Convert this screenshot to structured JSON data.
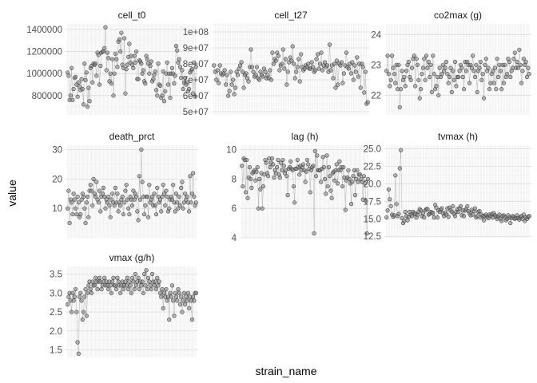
{
  "chart_data": {
    "type": "scatter",
    "layout": "faceted, 3 columns, free y scales",
    "xlabel": "strain_name",
    "ylabel": "value",
    "x_tick_labels": "none (categorical strain names, ~130 strains, unlabeled)",
    "n_points": 130,
    "grid": true,
    "point_color": "#404040",
    "point_fill": "#808080",
    "facets": [
      {
        "name": "cell_t0",
        "ylim": [
          625000,
          1450000
        ],
        "yticks": [
          800000,
          1000000,
          1200000,
          1400000
        ],
        "ytick_labels": [
          "800000",
          "1000000",
          "1200000",
          "1400000"
        ],
        "values": [
          1010000,
          980000,
          760000,
          800000,
          1050000,
          760000,
          860000,
          960000,
          970000,
          900000,
          790000,
          920000,
          880000,
          850000,
          950000,
          860000,
          720000,
          1090000,
          940000,
          1010000,
          700000,
          870000,
          750000,
          1050000,
          1070000,
          920000,
          1090000,
          1080000,
          1090000,
          980000,
          1190000,
          1170000,
          900000,
          1070000,
          1190000,
          1200000,
          1200000,
          1230000,
          1420000,
          1030000,
          1190000,
          1140000,
          930000,
          1000000,
          910000,
          1130000,
          800000,
          1000000,
          1180000,
          1130000,
          1060000,
          1290000,
          1310000,
          1200000,
          1370000,
          1080000,
          1050000,
          1320000,
          820000,
          1040000,
          1080000,
          1150000,
          1270000,
          1100000,
          1160000,
          1080000,
          1050000,
          1160000,
          1100000,
          1200000,
          950000,
          950000,
          1120000,
          1110000,
          1090000,
          1000000,
          1030000,
          930000,
          910000,
          1160000,
          1130000,
          1090000,
          1000000,
          1070000,
          1110000,
          930000,
          950000,
          990000,
          1020000,
          850000,
          800000,
          1090000,
          900000,
          890000,
          780000,
          800000,
          1020000,
          750000,
          840000,
          1000000,
          1100000,
          900000,
          1000000,
          780000,
          1000000,
          1050000,
          1000000,
          910000,
          980000,
          1250000,
          1210000,
          1100000,
          1130000,
          1060000,
          960000,
          1030000,
          860000,
          920000,
          960000,
          900000,
          920000,
          840000,
          860000,
          1010000,
          1030000,
          1040000,
          820000,
          1100000,
          790000,
          1060000
        ]
      },
      {
        "name": "cell_t27",
        "ylim": [
          48000000,
          105000000
        ],
        "yticks": [
          50000000,
          60000000,
          70000000,
          80000000,
          90000000,
          100000000
        ],
        "ytick_labels": [
          "5e+07",
          "6e+07",
          "7e+07",
          "8e+07",
          "9e+07",
          "1e+08"
        ],
        "values": [
          79000000,
          75000000,
          70000000,
          76000000,
          68000000,
          79000000,
          74000000,
          73000000,
          74000000,
          76000000,
          67000000,
          73000000,
          60000000,
          63000000,
          75000000,
          67000000,
          70000000,
          61000000,
          65000000,
          75000000,
          73000000,
          77000000,
          79000000,
          81000000,
          75000000,
          65000000,
          73000000,
          74000000,
          71000000,
          69000000,
          78000000,
          89000000,
          78000000,
          75000000,
          72000000,
          73000000,
          78000000,
          71000000,
          70000000,
          75000000,
          73000000,
          72000000,
          77000000,
          75000000,
          71000000,
          73000000,
          71000000,
          76000000,
          70000000,
          87000000,
          80000000,
          83000000,
          82000000,
          87000000,
          85000000,
          76000000,
          79000000,
          80000000,
          89000000,
          77000000,
          83000000,
          67000000,
          75000000,
          81000000,
          84000000,
          82000000,
          91000000,
          80000000,
          71000000,
          75000000,
          78000000,
          83000000,
          69000000,
          86000000,
          78000000,
          76000000,
          77000000,
          79000000,
          78000000,
          80000000,
          77000000,
          77000000,
          81000000,
          78000000,
          75000000,
          76000000,
          83000000,
          86000000,
          77000000,
          80000000,
          87000000,
          76000000,
          79000000,
          81000000,
          78000000,
          79000000,
          75000000,
          92000000,
          76000000,
          79000000,
          71000000,
          80000000,
          65000000,
          82000000,
          67000000,
          80000000,
          79000000,
          81000000,
          68000000,
          74000000,
          79000000,
          87000000,
          78000000,
          77000000,
          80000000,
          74000000,
          81000000,
          70000000,
          79000000,
          75000000,
          84000000,
          72000000,
          80000000,
          65000000,
          80000000,
          78000000,
          62000000,
          75000000,
          55000000,
          56000000
        ]
      },
      {
        "name": "co2max (g)",
        "ylim": [
          21.35,
          24.35
        ],
        "yticks": [
          22,
          23,
          24
        ],
        "ytick_labels": [
          "22",
          "23",
          "24"
        ],
        "values": [
          22.8,
          23.3,
          22.7,
          22.3,
          22.5,
          23.3,
          22.9,
          22.7,
          22.4,
          23.0,
          22.2,
          23.0,
          21.6,
          22.2,
          22.8,
          22.5,
          22.6,
          22.3,
          22.8,
          23.0,
          23.1,
          22.6,
          22.5,
          22.9,
          23.2,
          23.3,
          22.3,
          23.2,
          23.0,
          22.5,
          21.9,
          22.2,
          22.7,
          22.9,
          23.2,
          22.5,
          23.3,
          22.9,
          23.1,
          22.6,
          23.0,
          22.1,
          23.3,
          22.7,
          22.2,
          22.3,
          22.6,
          22.0,
          22.9,
          22.6,
          22.7,
          23.0,
          22.8,
          22.9,
          23.1,
          22.7,
          22.4,
          22.6,
          22.9,
          22.1,
          22.8,
          22.5,
          23.1,
          22.3,
          22.6,
          22.6,
          22.8,
          23.0,
          22.9,
          22.6,
          22.2,
          23.1,
          22.8,
          23.1,
          23.0,
          22.4,
          23.0,
          22.9,
          23.3,
          22.8,
          22.6,
          23.0,
          22.1,
          22.8,
          22.9,
          23.1,
          22.5,
          22.7,
          21.9,
          23.0,
          23.2,
          22.8,
          22.9,
          22.2,
          22.4,
          22.7,
          22.8,
          22.4,
          22.9,
          22.2,
          23.2,
          22.6,
          23.0,
          22.8,
          22.2,
          23.0,
          22.4,
          23.0,
          22.6,
          22.7,
          23.2,
          23.1,
          22.6,
          22.8,
          22.9,
          23.2,
          23.4,
          22.9,
          23.1,
          22.9,
          23.5,
          23.0,
          22.4,
          22.8,
          23.2,
          23.0,
          23.1,
          22.6,
          22.9,
          22.7
        ]
      },
      {
        "name": "death_prct",
        "ylim": [
          0,
          31.5
        ],
        "yticks": [
          10,
          20,
          30
        ],
        "ytick_labels": [
          "10",
          "20",
          "30"
        ],
        "values": [
          10,
          16,
          5,
          13,
          12,
          8,
          15,
          13,
          10,
          8,
          14,
          12,
          7,
          8,
          13,
          15,
          14,
          10,
          5,
          12,
          14,
          7,
          16,
          18,
          16,
          11,
          20,
          15,
          14,
          19,
          13,
          12,
          16,
          9,
          14,
          15,
          17,
          14,
          10,
          13,
          12,
          14,
          11,
          7,
          13,
          15,
          12,
          11,
          17,
          12,
          15,
          9,
          12,
          11,
          13,
          14,
          8,
          12,
          16,
          18,
          13,
          10,
          8,
          14,
          13,
          11,
          16,
          13,
          15,
          14,
          9,
          6,
          21,
          13,
          30,
          19,
          14,
          8,
          11,
          14,
          14,
          7,
          18,
          12,
          13,
          14,
          11,
          15,
          11,
          8,
          17,
          14,
          12,
          13,
          9,
          14,
          18,
          15,
          11,
          16,
          14,
          9,
          10,
          13,
          14,
          13,
          18,
          12,
          9,
          15,
          12,
          10,
          14,
          11,
          17,
          19,
          10,
          12,
          15,
          13,
          14,
          12,
          9,
          21,
          12,
          15,
          22,
          14,
          11,
          12
        ]
      },
      {
        "name": "lag (h)",
        "ylim": [
          4,
          10.3
        ],
        "yticks": [
          4,
          6,
          8,
          10
        ],
        "ytick_labels": [
          "4",
          "6",
          "8",
          "10"
        ],
        "values": [
          8.9,
          7.5,
          9.4,
          9.3,
          7.1,
          9.3,
          6.7,
          8.1,
          8.8,
          8.0,
          7.4,
          8.4,
          8.5,
          8.6,
          7.9,
          8.5,
          8.8,
          6.0,
          8.0,
          7.3,
          8.4,
          6.0,
          7.5,
          8.3,
          9.3,
          9.1,
          8.4,
          8.2,
          9.4,
          8.8,
          9.1,
          9.4,
          9.0,
          8.1,
          8.6,
          8.4,
          8.8,
          9.3,
          8.3,
          8.1,
          9.1,
          8.6,
          9.3,
          8.9,
          8.4,
          8.6,
          8.2,
          6.9,
          8.7,
          8.8,
          9.2,
          8.7,
          8.6,
          7.5,
          6.4,
          8.7,
          8.7,
          9.3,
          8.8,
          8.3,
          8.9,
          8.6,
          8.8,
          9.0,
          8.6,
          7.8,
          8.5,
          9.3,
          9.0,
          8.7,
          7.1,
          8.6,
          8.8,
          8.9,
          4.3,
          9.9,
          8.2,
          9.6,
          8.6,
          8.6,
          8.6,
          7.8,
          8.7,
          9.5,
          8.8,
          8.0,
          7.0,
          9.6,
          7.5,
          8.8,
          8.2,
          7.2,
          6.7,
          8.4,
          8.5,
          7.9,
          8.6,
          9.0,
          7.7,
          8.6,
          9.2,
          8.6,
          8.8,
          7.5,
          8.8,
          8.1,
          5.9,
          7.9,
          8.1,
          8.6,
          8.0,
          7.7,
          6.3,
          7.8,
          8.2,
          8.6,
          6.9,
          8.0,
          8.6,
          7.8,
          8.3,
          8.3,
          8.0,
          7.8,
          6.6,
          8.2,
          7.7,
          6.5,
          4.3,
          8.0
        ]
      },
      {
        "name": "tvmax (h)",
        "ylim": [
          12.3,
          25.5
        ],
        "yticks": [
          12.5,
          15.0,
          17.5,
          20.0,
          22.5,
          25.0
        ],
        "ytick_labels": [
          "12.5",
          "15.0",
          "17.5",
          "20.0",
          "22.5",
          "25.0"
        ],
        "values": [
          15.2,
          16.2,
          19.2,
          17.8,
          16.8,
          15.6,
          15.3,
          15.5,
          21.2,
          17.1,
          15.4,
          15.7,
          22.2,
          24.8,
          15.1,
          14.4,
          14.7,
          16.0,
          15.4,
          14.8,
          15.3,
          16.0,
          15.6,
          15.4,
          16.0,
          15.8,
          15.7,
          15.2,
          15.6,
          16.0,
          16.4,
          16.2,
          15.4,
          15.8,
          15.2,
          16.2,
          16.4,
          16.4,
          15.6,
          15.7,
          16.0,
          15.9,
          15.8,
          15.2,
          17.0,
          16.6,
          15.2,
          16.2,
          16.0,
          16.3,
          16.5,
          15.8,
          15.4,
          15.9,
          15.6,
          16.5,
          15.3,
          16.6,
          16.2,
          16.0,
          16.8,
          15.7,
          15.4,
          16.0,
          16.4,
          16.0,
          16.5,
          16.8,
          15.5,
          16.2,
          15.4,
          16.2,
          16.4,
          16.8,
          16.1,
          15.8,
          15.5,
          16.3,
          15.6,
          16.1,
          16.5,
          15.2,
          15.4,
          16.0,
          16.1,
          15.2,
          15.6,
          15.4,
          14.8,
          15.4,
          15.6,
          15.3,
          15.1,
          15.6,
          15.4,
          15.7,
          15.2,
          15.8,
          15.5,
          15.3,
          15.0,
          15.3,
          15.6,
          15.0,
          14.7,
          15.4,
          15.5,
          15.2,
          14.8,
          15.0,
          15.5,
          15.2,
          14.4,
          15.1,
          15.4,
          15.2,
          15.0,
          15.1,
          15.5,
          15.1,
          14.9,
          15.2,
          15.4,
          15.0,
          15.6,
          14.7,
          15.2,
          15.0,
          15.3,
          15.4
        ]
      },
      {
        "name": "vmax (g/h)",
        "ylim": [
          1.3,
          3.7
        ],
        "yticks": [
          1.5,
          2.0,
          2.5,
          3.0,
          3.5
        ],
        "ytick_labels": [
          "1.5",
          "2.0",
          "2.5",
          "3.0",
          "3.5"
        ],
        "values": [
          2.7,
          2.9,
          3.0,
          2.8,
          2.5,
          3.0,
          2.8,
          2.9,
          3.1,
          2.5,
          1.7,
          1.4,
          2.9,
          3.0,
          2.8,
          2.3,
          2.5,
          2.9,
          3.1,
          2.4,
          3.0,
          3.2,
          3.3,
          3.1,
          3.0,
          3.3,
          3.2,
          3.2,
          3.4,
          3.3,
          3.1,
          3.3,
          3.4,
          3.3,
          3.1,
          3.2,
          3.3,
          3.4,
          3.2,
          3.3,
          3.2,
          3.1,
          3.3,
          3.2,
          3.0,
          3.3,
          3.4,
          3.2,
          3.2,
          3.1,
          3.4,
          3.3,
          3.2,
          3.0,
          3.2,
          3.3,
          3.1,
          3.2,
          3.3,
          3.2,
          3.4,
          3.1,
          3.3,
          3.2,
          3.0,
          3.4,
          3.3,
          3.1,
          3.5,
          3.2,
          3.3,
          3.4,
          3.1,
          3.3,
          3.2,
          3.3,
          3.0,
          3.5,
          3.2,
          3.6,
          3.1,
          3.4,
          3.3,
          3.2,
          3.1,
          3.5,
          3.3,
          3.2,
          3.3,
          3.1,
          3.4,
          3.2,
          3.3,
          3.0,
          2.9,
          3.1,
          2.6,
          3.0,
          2.9,
          3.1,
          2.8,
          2.9,
          2.3,
          3.0,
          2.9,
          3.2,
          2.8,
          2.4,
          3.0,
          2.9,
          2.8,
          3.1,
          3.0,
          2.7,
          2.9,
          2.5,
          2.8,
          3.0,
          2.7,
          2.9,
          2.8,
          3.0,
          2.6,
          2.9,
          2.8,
          2.3,
          2.9,
          2.8,
          3.0,
          3.0
        ]
      }
    ]
  }
}
